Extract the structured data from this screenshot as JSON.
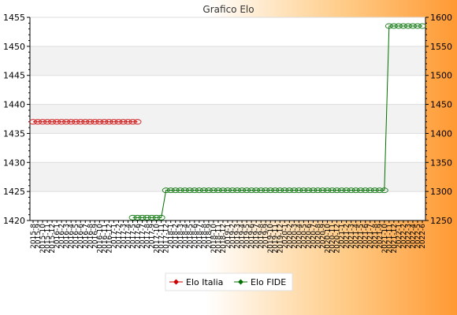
{
  "chart_data": {
    "type": "line",
    "title": "Grafico Elo",
    "xlabel": "",
    "ylabel": "",
    "y_left": {
      "lim": [
        1420,
        1455
      ],
      "ticks": [
        1420,
        1425,
        1430,
        1435,
        1440,
        1445,
        1450,
        1455
      ]
    },
    "y_right": {
      "lim": [
        1250,
        1600
      ],
      "ticks": [
        1250,
        1300,
        1350,
        1400,
        1450,
        1500,
        1550,
        1600
      ]
    },
    "x_count": 83,
    "x_tick_labels": [
      "2015-8",
      "2015-9",
      "2015-10",
      "2015-11",
      "2015-12",
      "2016-1",
      "2016-2",
      "2016-3",
      "2016-4",
      "2016-5",
      "2016-6",
      "2016-7",
      "2016-8",
      "2016-9",
      "2016-10",
      "2016-11",
      "2016-12",
      "2017-1",
      "2017-2",
      "2017-3",
      "2017-4",
      "2017-5",
      "2017-6",
      "2017-7",
      "2017-8",
      "2017-9",
      "2017-10",
      "2017-11",
      "2017-12",
      "2018-1",
      "2018-2",
      "2018-3",
      "2018-4",
      "2018-5",
      "2018-6",
      "2018-7",
      "2018-8",
      "2018-9",
      "2018-10",
      "2018-11",
      "2018-12",
      "2019-1",
      "2019-2",
      "2019-3",
      "2019-4",
      "2019-5",
      "2019-6",
      "2019-7",
      "2019-8",
      "2019-9",
      "2019-10",
      "2019-11",
      "2019-12",
      "2020-1",
      "2020-2",
      "2020-3",
      "2020-4",
      "2020-5",
      "2020-6",
      "2020-7",
      "2020-8",
      "2020-9",
      "2020-10",
      "2020-11",
      "2020-12",
      "2021-1",
      "2021-2",
      "2021-3",
      "2021-4",
      "2021-5",
      "2021-6",
      "2021-7",
      "2021-8",
      "2021-9",
      "2021-10",
      "2021-11",
      "2021-12",
      "2022-1",
      "2022-2",
      "2022-3",
      "2022-4",
      "2022-5",
      "2022-6"
    ],
    "grid": true,
    "legend_position": "bottom",
    "series": [
      {
        "name": "Elo Italia",
        "axis": "left",
        "color": "#cc0000",
        "segments": [
          {
            "from_index": 0,
            "to_index": 22,
            "value": 1437
          }
        ]
      },
      {
        "name": "Elo FIDE",
        "axis": "right",
        "color": "#007000",
        "segments": [
          {
            "from_index": 21,
            "to_index": 27,
            "value": 1255
          },
          {
            "from_index": 28,
            "to_index": 74,
            "value": 1302
          },
          {
            "from_index": 75,
            "to_index": 82,
            "value": 1585
          }
        ]
      }
    ]
  }
}
